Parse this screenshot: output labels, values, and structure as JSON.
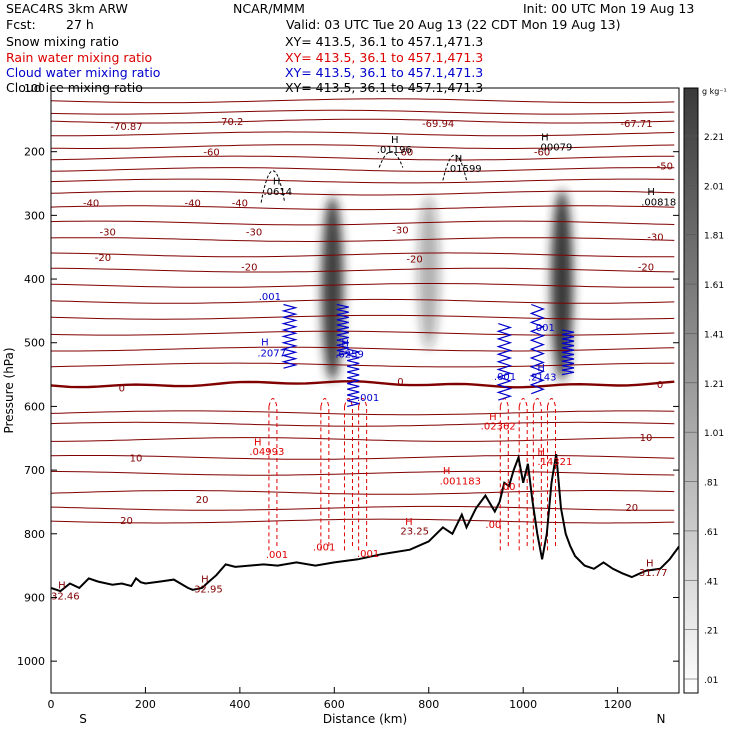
{
  "header": {
    "model": "SEAC4RS  3km ARW",
    "org": "NCAR/MMM",
    "init": "Init: 00 UTC Mon 19 Aug 13",
    "fcst_label": "Fcst:",
    "fcst_value": "27 h",
    "valid": "Valid: 03 UTC Tue 20 Aug 13 (22 CDT Mon 19 Aug 13)"
  },
  "fields": [
    {
      "name": "Snow mixing ratio",
      "xy": "XY= 413.5, 36.1 to 457.1,471.3",
      "color": "#000000"
    },
    {
      "name": "Rain water mixing ratio",
      "xy": "XY= 413.5, 36.1 to 457.1,471.3",
      "color": "#dd0000"
    },
    {
      "name": "Cloud water mixing ratio",
      "xy": "XY= 413.5, 36.1 to 457.1,471.3",
      "color": "#0000cc"
    },
    {
      "name": "Cloud ice mixing ratio",
      "xy": "XY= 413.5, 36.1 to 457.1,471.3",
      "color": "#000000"
    }
  ],
  "colors": {
    "temperature": "#800000",
    "freezing": "#800000",
    "rain": "#e00000",
    "cloud_water": "#0000cc",
    "terrain": "#000000",
    "snow": "#000000"
  },
  "chart_data": {
    "type": "heatmap",
    "xlabel": "Distance (km)",
    "ylabel": "Pressure (hPa)",
    "xlim": [
      0,
      1330
    ],
    "ylim": [
      100,
      1050
    ],
    "xticks": [
      "0",
      "200",
      "400",
      "600",
      "800",
      "1000",
      "1200"
    ],
    "yticks": [
      "100",
      "200",
      "300",
      "400",
      "500",
      "600",
      "700",
      "800",
      "900",
      "1000"
    ],
    "x_end_labels": {
      "left": "S",
      "right": "N"
    },
    "colorbar": {
      "unit": "g kg⁻¹",
      "levels": [
        "2.21",
        "2.01",
        "1.81",
        "1.61",
        "1.41",
        "1.21",
        "1.01",
        ".81",
        ".61",
        ".41",
        ".21",
        ".01"
      ]
    },
    "temperature_isotherms_C": [
      -70,
      -60,
      -50,
      -40,
      -30,
      -20,
      -10,
      0,
      10,
      20
    ],
    "temperature_labels": [
      {
        "x": 160,
        "p": 160,
        "t": "-70.87"
      },
      {
        "x": 380,
        "p": 152,
        "t": "-70.2"
      },
      {
        "x": 820,
        "p": 155,
        "t": "-69.94"
      },
      {
        "x": 1240,
        "p": 155,
        "t": "-67.71"
      },
      {
        "x": 340,
        "p": 200,
        "t": "-60"
      },
      {
        "x": 750,
        "p": 200,
        "t": "-60"
      },
      {
        "x": 1040,
        "p": 200,
        "t": "-60"
      },
      {
        "x": 1300,
        "p": 222,
        "t": "-50"
      },
      {
        "x": 85,
        "p": 280,
        "t": "-40"
      },
      {
        "x": 300,
        "p": 280,
        "t": "-40"
      },
      {
        "x": 400,
        "p": 280,
        "t": "-40"
      },
      {
        "x": 120,
        "p": 325,
        "t": "-30"
      },
      {
        "x": 430,
        "p": 325,
        "t": "-30"
      },
      {
        "x": 740,
        "p": 322,
        "t": "-30"
      },
      {
        "x": 1280,
        "p": 333,
        "t": "-30"
      },
      {
        "x": 110,
        "p": 365,
        "t": "-20"
      },
      {
        "x": 420,
        "p": 380,
        "t": "-20"
      },
      {
        "x": 770,
        "p": 368,
        "t": "-20"
      },
      {
        "x": 1260,
        "p": 380,
        "t": "-20"
      },
      {
        "x": 150,
        "p": 570,
        "t": "0"
      },
      {
        "x": 740,
        "p": 560,
        "t": "0"
      },
      {
        "x": 1290,
        "p": 565,
        "t": "0"
      },
      {
        "x": 1260,
        "p": 648,
        "t": "10"
      },
      {
        "x": 180,
        "p": 680,
        "t": "10"
      },
      {
        "x": 1230,
        "p": 758,
        "t": "20"
      },
      {
        "x": 320,
        "p": 745,
        "t": "20"
      },
      {
        "x": 160,
        "p": 778,
        "t": "20"
      }
    ],
    "snow_cores": [
      {
        "x": 596,
        "p_top": 270,
        "p_bot": 560,
        "max": 2.1
      },
      {
        "x": 800,
        "p_top": 270,
        "p_bot": 510,
        "max": 0.8
      },
      {
        "x": 1082,
        "p_top": 260,
        "p_bot": 560,
        "max": 2.3
      }
    ],
    "rain_shafts_km": [
      470,
      580,
      630,
      660,
      960,
      1000,
      1030,
      1060
    ],
    "terrain": {
      "x": [
        0,
        20,
        40,
        60,
        80,
        100,
        130,
        150,
        170,
        180,
        190,
        200,
        230,
        260,
        290,
        300,
        320,
        330,
        350,
        370,
        390,
        420,
        450,
        480,
        520,
        560,
        600,
        650,
        700,
        760,
        800,
        830,
        850,
        870,
        880,
        900,
        920,
        940,
        950,
        960,
        970,
        980,
        990,
        1000,
        1010,
        1020,
        1030,
        1040,
        1050,
        1060,
        1070,
        1080,
        1090,
        1100,
        1110,
        1130,
        1150,
        1170,
        1190,
        1210,
        1230,
        1260,
        1290,
        1310,
        1330
      ],
      "p": [
        885,
        890,
        878,
        885,
        870,
        875,
        880,
        878,
        882,
        870,
        876,
        878,
        875,
        872,
        885,
        888,
        885,
        878,
        865,
        848,
        852,
        850,
        848,
        850,
        845,
        850,
        845,
        840,
        832,
        825,
        812,
        790,
        800,
        770,
        790,
        760,
        740,
        765,
        750,
        720,
        725,
        700,
        680,
        720,
        690,
        750,
        800,
        840,
        800,
        720,
        675,
        760,
        800,
        820,
        835,
        850,
        855,
        845,
        855,
        862,
        868,
        858,
        855,
        840,
        820
      ]
    },
    "annotations": [
      {
        "t": "H",
        "x": 470,
        "p": 245,
        "c": "#000000"
      },
      {
        "t": ".0614",
        "x": 450,
        "p": 262,
        "c": "#000000"
      },
      {
        "t": "H",
        "x": 720,
        "p": 180,
        "c": "#000000"
      },
      {
        "t": ".01196",
        "x": 690,
        "p": 196,
        "c": "#000000"
      },
      {
        "t": "H",
        "x": 855,
        "p": 210,
        "c": "#000000"
      },
      {
        "t": ".01599",
        "x": 838,
        "p": 226,
        "c": "#000000"
      },
      {
        "t": "H",
        "x": 1038,
        "p": 176,
        "c": "#000000"
      },
      {
        "t": ".00079",
        "x": 1030,
        "p": 192,
        "c": "#000000"
      },
      {
        "t": "H",
        "x": 1263,
        "p": 262,
        "c": "#000000"
      },
      {
        "t": ".00818",
        "x": 1250,
        "p": 278,
        "c": "#000000"
      },
      {
        "t": ".001",
        "x": 440,
        "p": 427,
        "c": "#0000cc"
      },
      {
        "t": "H",
        "x": 445,
        "p": 498,
        "c": "#0000cc"
      },
      {
        "t": ".2077",
        "x": 437,
        "p": 515,
        "c": "#0000cc"
      },
      {
        "t": "H",
        "x": 615,
        "p": 500,
        "c": "#0000cc"
      },
      {
        "t": ".6259",
        "x": 602,
        "p": 517,
        "c": "#0000cc"
      },
      {
        "t": ".001",
        "x": 648,
        "p": 585,
        "c": "#0000cc"
      },
      {
        "t": ".001",
        "x": 1020,
        "p": 475,
        "c": "#0000cc"
      },
      {
        "t": ".001",
        "x": 938,
        "p": 552,
        "c": "#0000cc"
      },
      {
        "t": "H",
        "x": 1030,
        "p": 538,
        "c": "#0000cc"
      },
      {
        "t": ".2143",
        "x": 1010,
        "p": 553,
        "c": "#0000cc"
      },
      {
        "t": "H",
        "x": 430,
        "p": 655,
        "c": "#e00000"
      },
      {
        "t": ".04993",
        "x": 420,
        "p": 670,
        "c": "#e00000"
      },
      {
        "t": ".001",
        "x": 455,
        "p": 832,
        "c": "#e00000"
      },
      {
        "t": ".001",
        "x": 555,
        "p": 820,
        "c": "#e00000"
      },
      {
        "t": ".001",
        "x": 648,
        "p": 830,
        "c": "#e00000"
      },
      {
        "t": "H",
        "x": 928,
        "p": 615,
        "c": "#e00000"
      },
      {
        "t": ".02362",
        "x": 910,
        "p": 630,
        "c": "#e00000"
      },
      {
        "t": "H",
        "x": 1030,
        "p": 670,
        "c": "#e00000"
      },
      {
        "t": ".14321",
        "x": 1030,
        "p": 686,
        "c": "#e00000"
      },
      {
        "t": "H",
        "x": 830,
        "p": 700,
        "c": "#e00000"
      },
      {
        "t": ".001183",
        "x": 823,
        "p": 716,
        "c": "#e00000"
      },
      {
        "t": "H",
        "x": 750,
        "p": 780,
        "c": "#e00000"
      },
      {
        "t": "23.25",
        "x": 740,
        "p": 795,
        "c": "#800000"
      },
      {
        "t": ".00",
        "x": 950,
        "p": 725,
        "c": "#e00000"
      },
      {
        "t": ".00",
        "x": 920,
        "p": 785,
        "c": "#e00000"
      },
      {
        "t": "H",
        "x": 15,
        "p": 880,
        "c": "#800000"
      },
      {
        "t": "32.46",
        "x": 0,
        "p": 897,
        "c": "#800000"
      },
      {
        "t": "H",
        "x": 318,
        "p": 870,
        "c": "#800000"
      },
      {
        "t": "32.95",
        "x": 303,
        "p": 886,
        "c": "#800000"
      },
      {
        "t": "H",
        "x": 1260,
        "p": 845,
        "c": "#800000"
      },
      {
        "t": "31.77",
        "x": 1245,
        "p": 860,
        "c": "#800000"
      }
    ]
  }
}
